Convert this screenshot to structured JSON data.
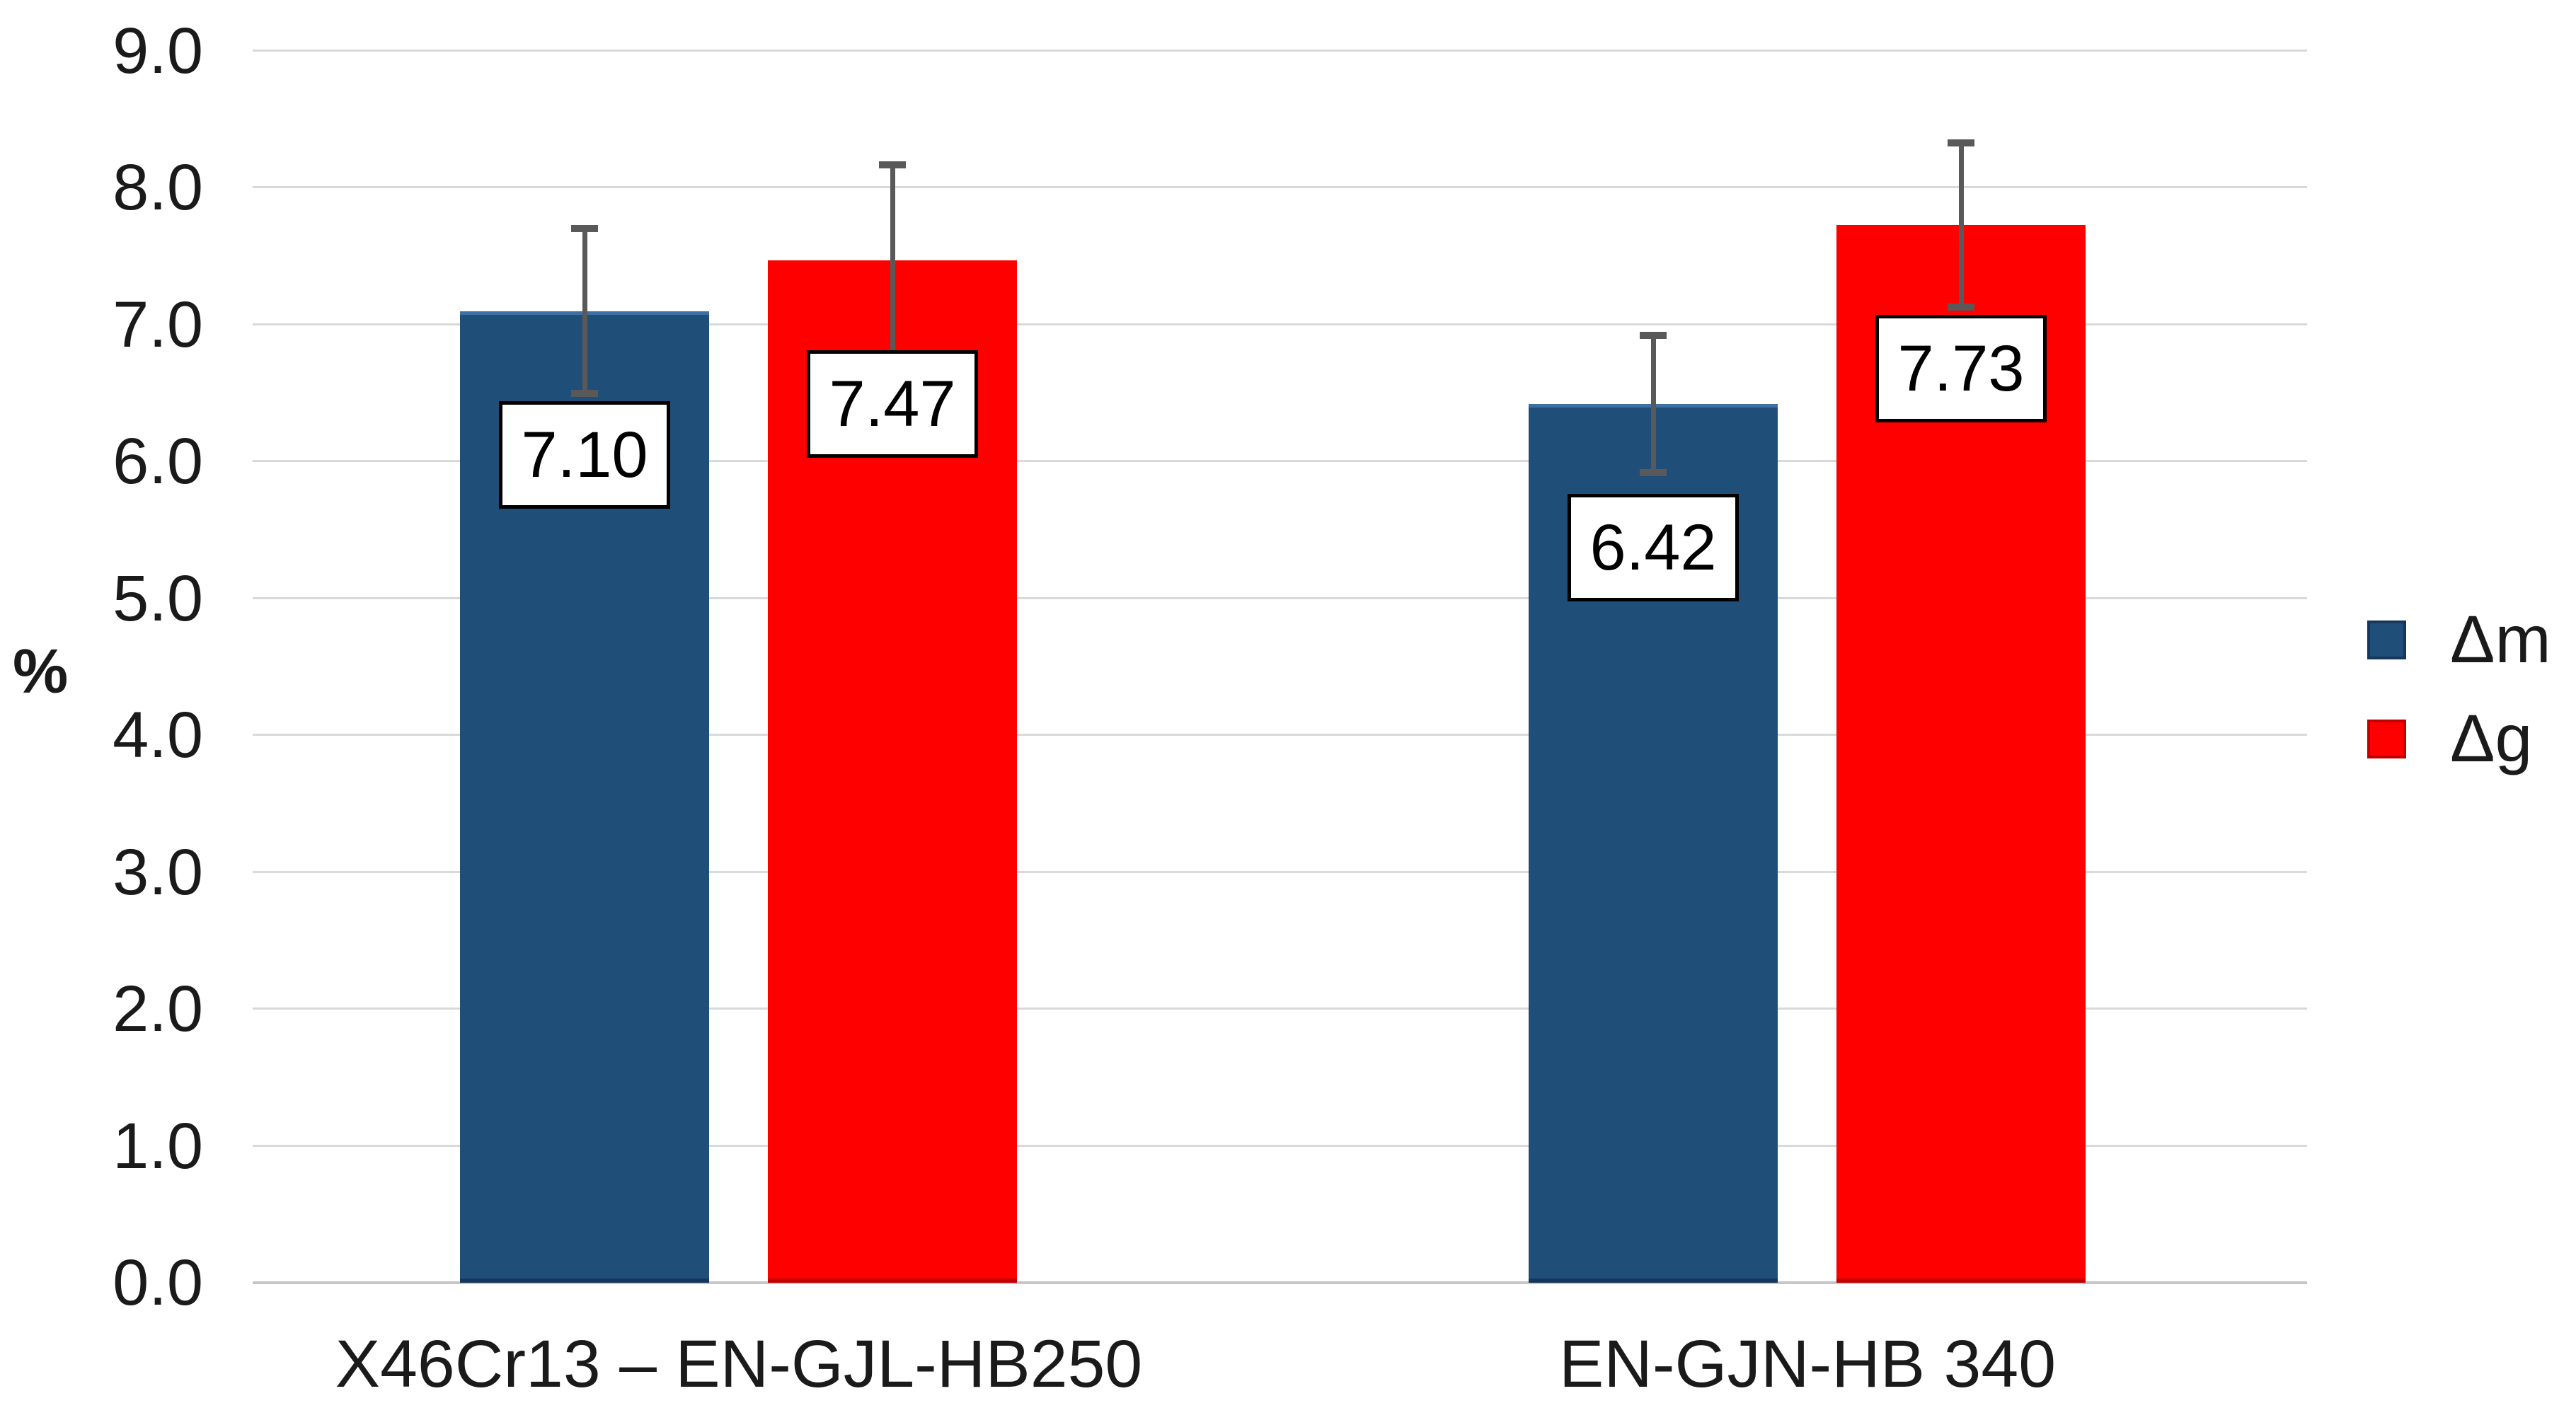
{
  "chart_data": {
    "type": "bar",
    "title": "",
    "xlabel": "",
    "ylabel": "%",
    "ylim": [
      0,
      9
    ],
    "grid": true,
    "legend_position": "right",
    "error_bar_color": "#595959",
    "yticks": [
      {
        "value": 0,
        "label": "0.0"
      },
      {
        "value": 1,
        "label": "1.0"
      },
      {
        "value": 2,
        "label": "2.0"
      },
      {
        "value": 3,
        "label": "3.0"
      },
      {
        "value": 4,
        "label": "4.0"
      },
      {
        "value": 5,
        "label": "5.0"
      },
      {
        "value": 6,
        "label": "6.0"
      },
      {
        "value": 7,
        "label": "7.0"
      },
      {
        "value": 8,
        "label": "8.0"
      },
      {
        "value": 9,
        "label": "9.0"
      }
    ],
    "categories": [
      "X46Cr13 – EN-GJL-HB250",
      "EN-GJN-HB 340"
    ],
    "series": [
      {
        "name": "Δm",
        "color": "#1F4E79",
        "top_edge": "#3E6FA3",
        "bottom_edge": "#16365C",
        "values": [
          7.1,
          6.42
        ],
        "labels": [
          "7.10",
          "6.42"
        ],
        "errors": [
          0.6,
          0.5
        ]
      },
      {
        "name": "Δg",
        "color": "#FF0000",
        "top_edge": "",
        "bottom_edge": "#C00000",
        "values": [
          7.47,
          7.73
        ],
        "labels": [
          "7.47",
          "7.73"
        ],
        "errors": [
          0.7,
          0.6
        ]
      }
    ]
  }
}
